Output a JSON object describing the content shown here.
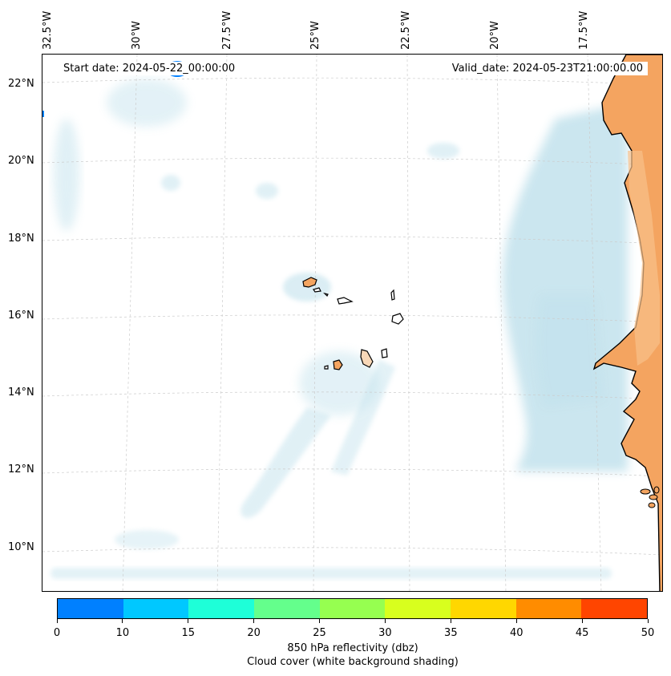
{
  "map": {
    "title_left": "Start date: 2024-05-22_00:00:00",
    "title_right": "Valid_date: 2024-05-23T21:00:00.00",
    "latitude_labels": [
      "22°N",
      "20°N",
      "18°N",
      "16°N",
      "14°N",
      "12°N",
      "10°N"
    ],
    "longitude_labels": [
      "32.5°W",
      "30°W",
      "27.5°W",
      "25°W",
      "22.5°W",
      "20°W",
      "17.5°W"
    ],
    "land_color": "#f4a460",
    "cloud_color": "#add8e6",
    "gridline_color": "#cccccc"
  },
  "colorbar": {
    "ticks": [
      "0",
      "10",
      "15",
      "20",
      "25",
      "30",
      "35",
      "40",
      "45",
      "50"
    ],
    "colors": [
      "#0080ff",
      "#00c8ff",
      "#1effd8",
      "#64ff8c",
      "#96ff50",
      "#d8ff1e",
      "#ffd700",
      "#ff8c00",
      "#ff4500"
    ],
    "label_line1": "850 hPa reflectivity (dbz)",
    "label_line2": "Cloud cover (white background shading)"
  }
}
